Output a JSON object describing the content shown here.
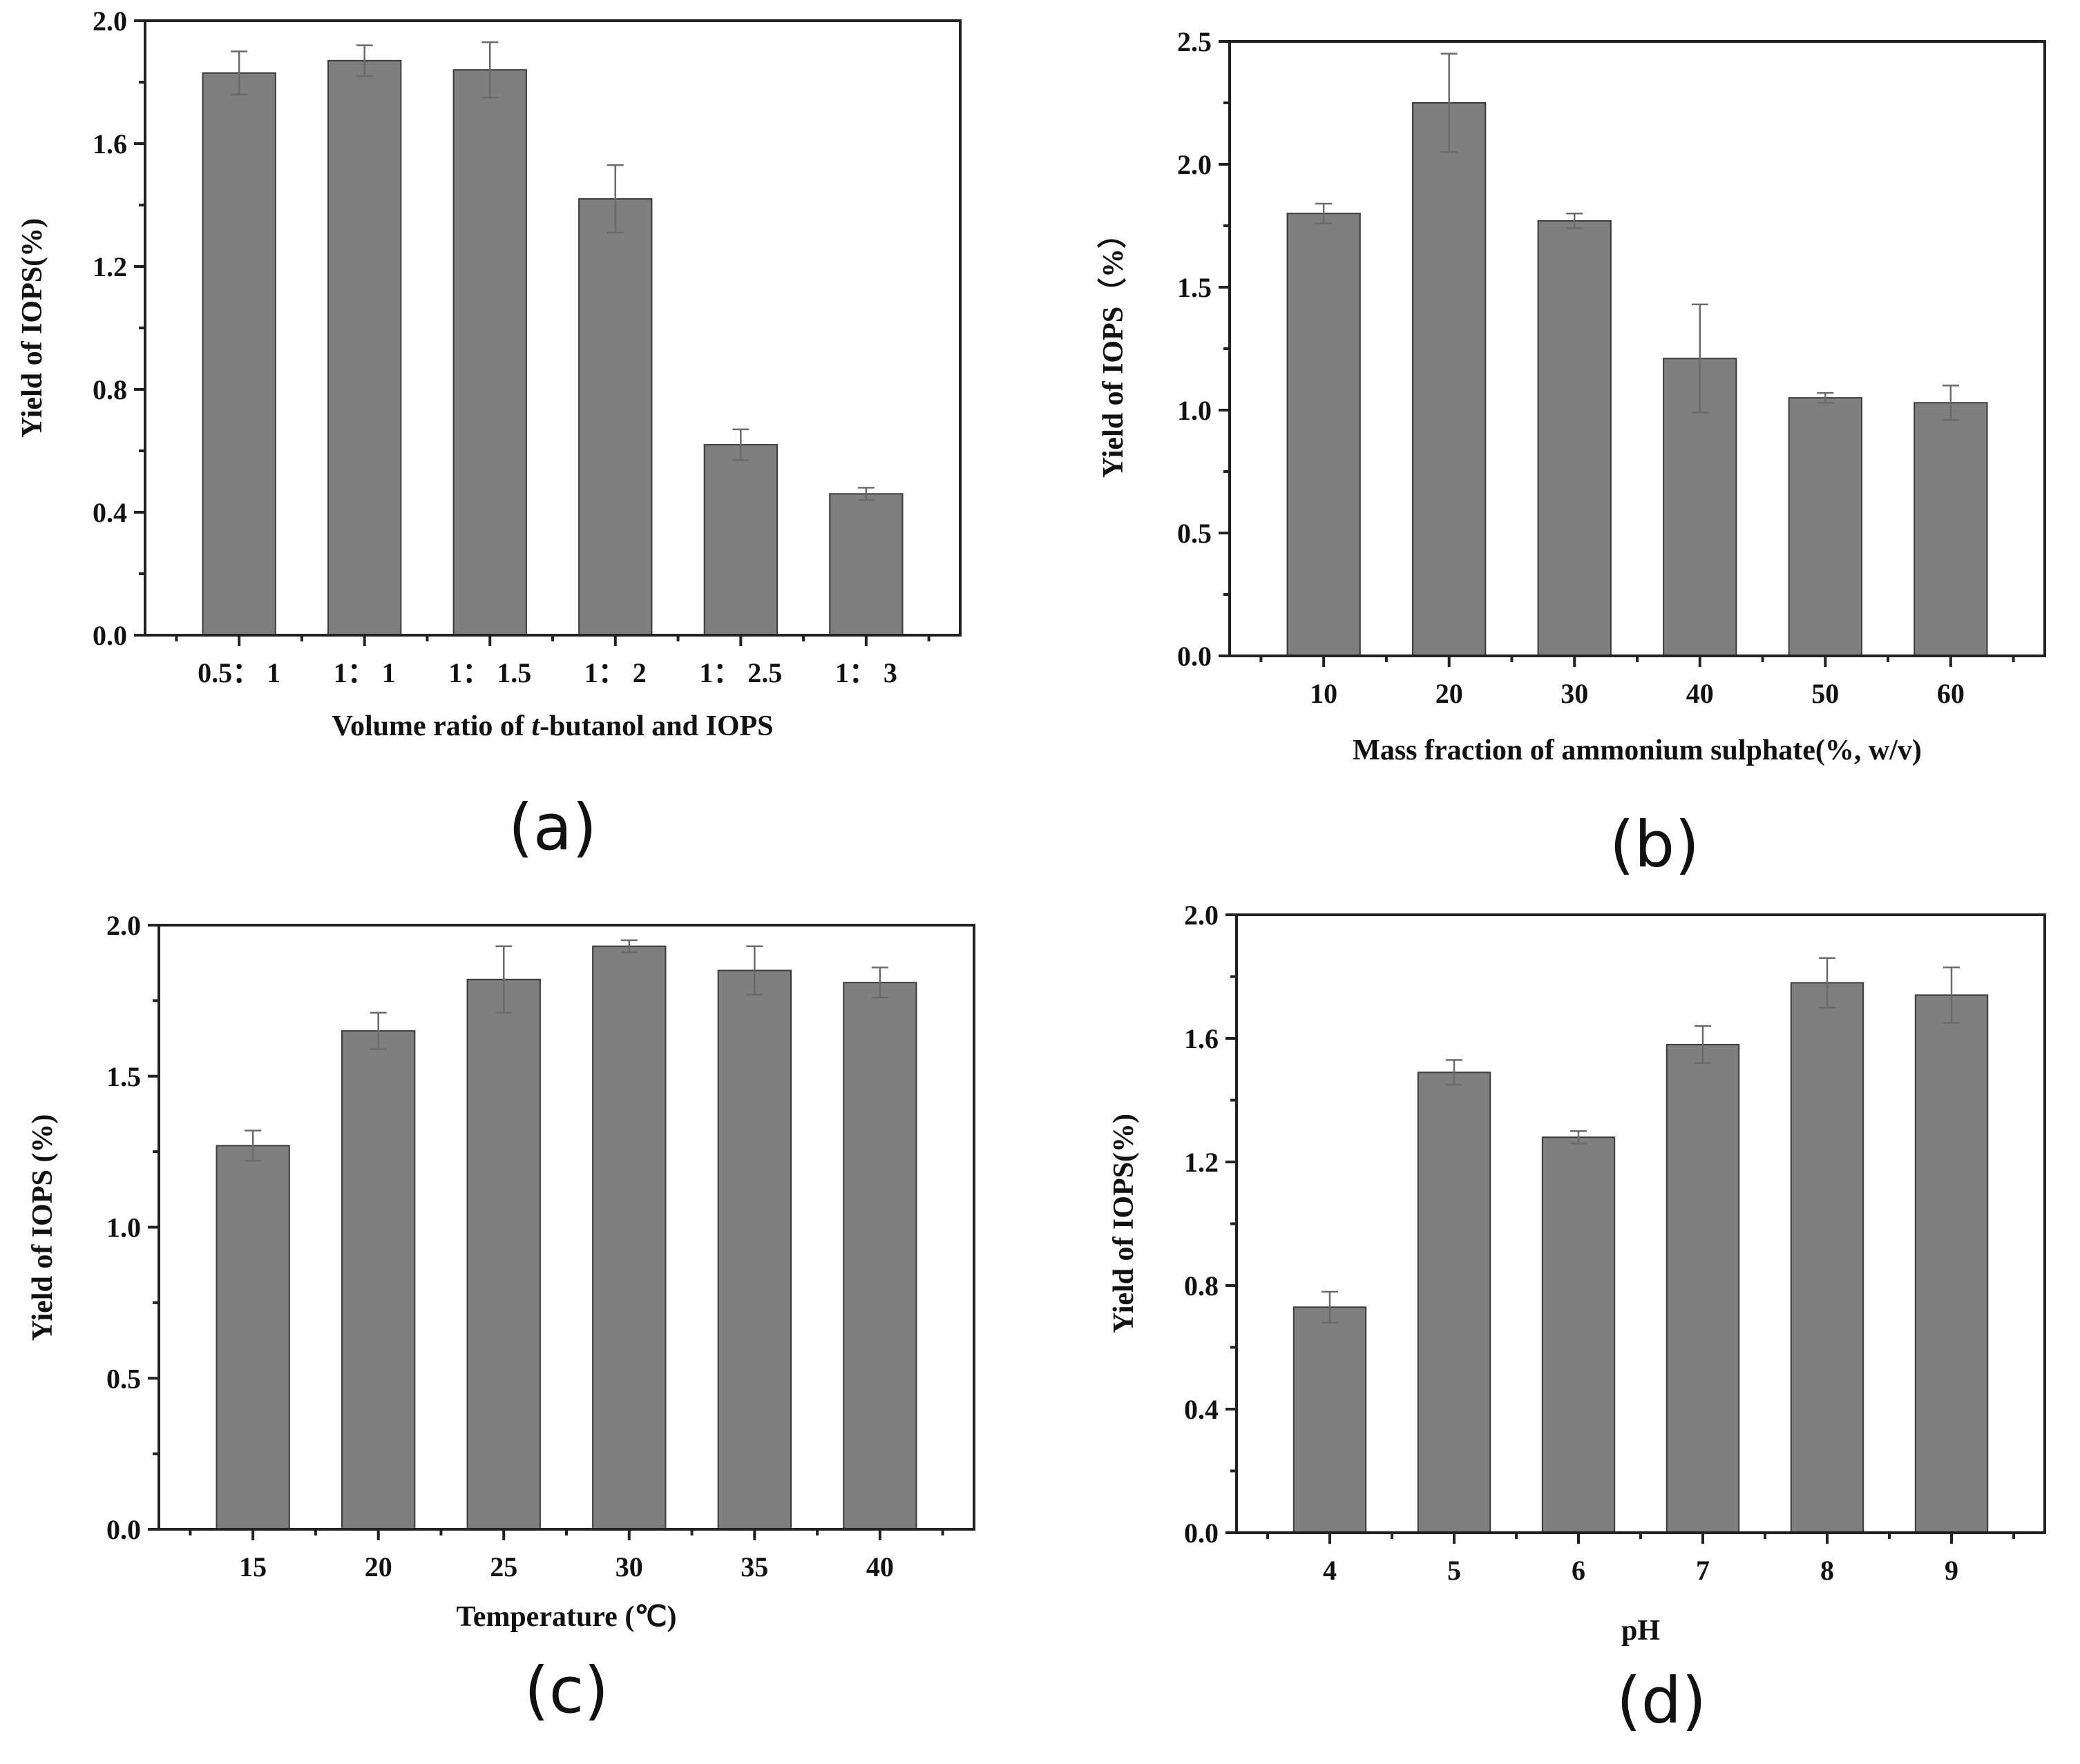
{
  "chart_data": [
    {
      "type": "bar",
      "panel_label": "(a)",
      "categories": [
        "0.5：1",
        "1：1",
        "1：1.5",
        "1：2",
        "1：2.5",
        "1：3"
      ],
      "category_labels": [
        "0.5：  1",
        "1：  1",
        "1：  1.5",
        "1：  2",
        "1：  2.5",
        "1：  3"
      ],
      "values": [
        1.83,
        1.87,
        1.84,
        1.42,
        0.62,
        0.46
      ],
      "errors": [
        0.07,
        0.05,
        0.09,
        0.11,
        0.05,
        0.02
      ],
      "xlabel_parts": [
        "Volume ratio of ",
        "t",
        "-butanol and IOPS"
      ],
      "ylabel": "Yield of IOPS(%)",
      "ylim": [
        0,
        2.0
      ],
      "yticks": [
        "0.0",
        "0.4",
        "0.8",
        "1.2",
        "1.6",
        "2.0"
      ],
      "ytick_values": [
        0,
        0.4,
        0.8,
        1.2,
        1.6,
        2.0
      ]
    },
    {
      "type": "bar",
      "panel_label": "(b)",
      "categories": [
        "10",
        "20",
        "30",
        "40",
        "50",
        "60"
      ],
      "category_labels": [
        "10",
        "20",
        "30",
        "40",
        "50",
        "60"
      ],
      "values": [
        1.8,
        2.25,
        1.77,
        1.21,
        1.05,
        1.03
      ],
      "errors": [
        0.04,
        0.2,
        0.03,
        0.22,
        0.02,
        0.07
      ],
      "xlabel_parts": [
        "Mass fraction of ammonium sulphate(%, w/v)"
      ],
      "ylabel": "Yield of IOPS（%）",
      "ylim": [
        0,
        2.5
      ],
      "yticks": [
        "0.0",
        "0.5",
        "1.0",
        "1.5",
        "2.0",
        "2.5"
      ],
      "ytick_values": [
        0,
        0.5,
        1.0,
        1.5,
        2.0,
        2.5
      ]
    },
    {
      "type": "bar",
      "panel_label": "(c)",
      "categories": [
        "15",
        "20",
        "25",
        "30",
        "35",
        "40"
      ],
      "category_labels": [
        "15",
        "20",
        "25",
        "30",
        "35",
        "40"
      ],
      "values": [
        1.27,
        1.65,
        1.82,
        1.93,
        1.85,
        1.81
      ],
      "errors": [
        0.05,
        0.06,
        0.11,
        0.02,
        0.08,
        0.05
      ],
      "xlabel_parts": [
        "Temperature (℃)"
      ],
      "ylabel": "Yield of IOPS (%)",
      "ylim": [
        0,
        2.0
      ],
      "yticks": [
        "0.0",
        "0.5",
        "1.0",
        "1.5",
        "2.0"
      ],
      "ytick_values": [
        0,
        0.5,
        1.0,
        1.5,
        2.0
      ]
    },
    {
      "type": "bar",
      "panel_label": "(d)",
      "categories": [
        "4",
        "5",
        "6",
        "7",
        "8",
        "9"
      ],
      "category_labels": [
        "4",
        "5",
        "6",
        "7",
        "8",
        "9"
      ],
      "values": [
        0.73,
        1.49,
        1.28,
        1.58,
        1.78,
        1.74
      ],
      "errors": [
        0.05,
        0.04,
        0.02,
        0.06,
        0.08,
        0.09
      ],
      "xlabel_parts": [
        "pH"
      ],
      "ylabel": "Yield of IOPS(%)",
      "ylim": [
        0,
        2.0
      ],
      "yticks": [
        "0.0",
        "0.4",
        "0.8",
        "1.2",
        "1.6",
        "2.0"
      ],
      "ytick_values": [
        0,
        0.4,
        0.8,
        1.2,
        1.6,
        2.0
      ]
    }
  ],
  "colors": {
    "bar": "#7f7f7f",
    "bar_edge": "#3a3a3a",
    "axis": "#222222"
  }
}
